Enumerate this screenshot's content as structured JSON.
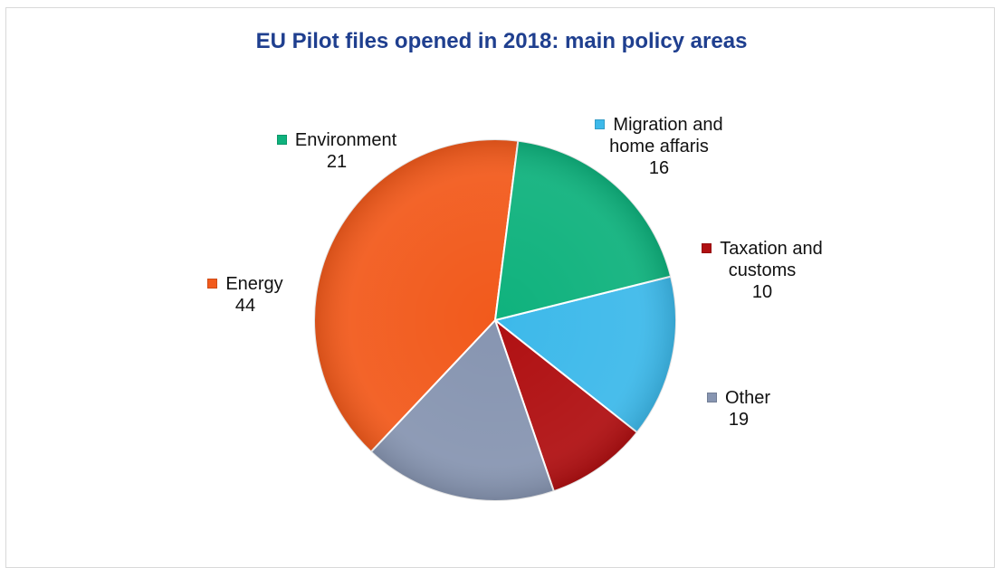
{
  "chart_data": {
    "type": "pie",
    "title": "EU Pilot files opened in 2018: main policy areas",
    "slices": [
      {
        "name": "Migration and home affaris",
        "value": 16,
        "color": "#3db9ea",
        "label_lines": [
          "Migration and",
          "home affaris"
        ]
      },
      {
        "name": "Taxation and customs",
        "value": 10,
        "color": "#b01012",
        "label_lines": [
          "Taxation and",
          "customs"
        ]
      },
      {
        "name": "Other",
        "value": 19,
        "color": "#8795b1",
        "label_lines": [
          "Other"
        ]
      },
      {
        "name": "Energy",
        "value": 44,
        "color": "#f25a1c",
        "label_lines": [
          "Energy"
        ]
      },
      {
        "name": "Environment",
        "value": 21,
        "color": "#0fb27d",
        "label_lines": [
          "Environment"
        ]
      }
    ]
  }
}
